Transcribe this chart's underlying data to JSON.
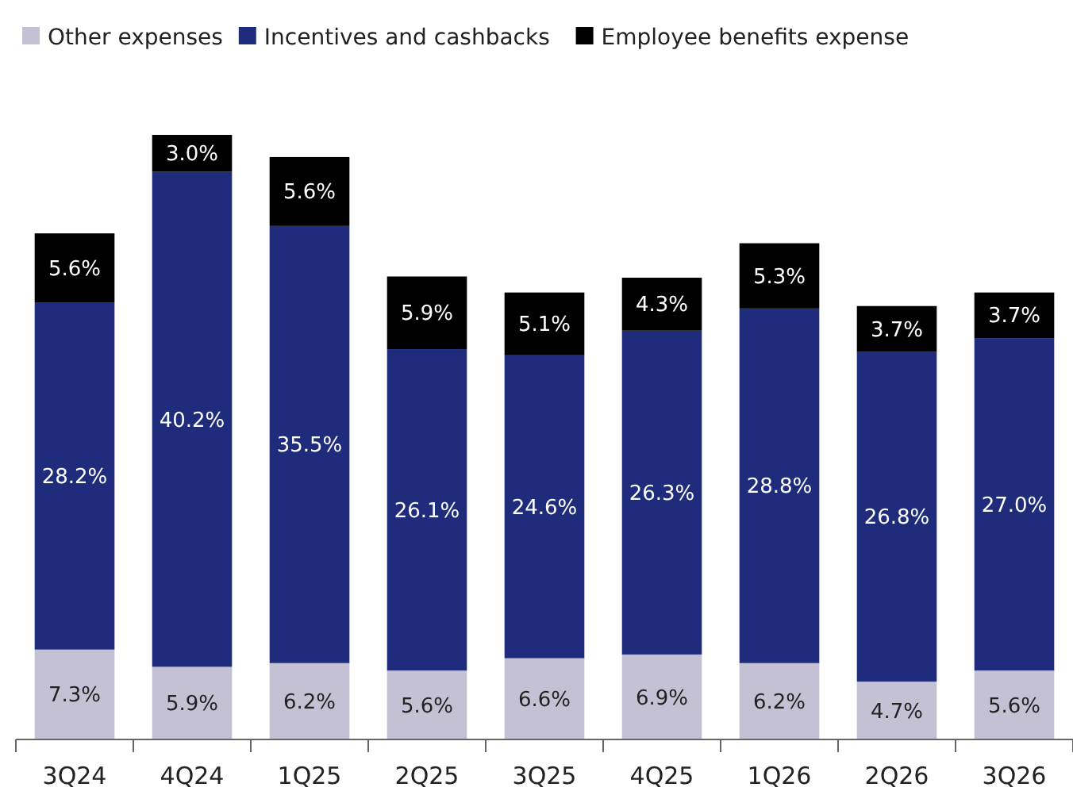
{
  "chart_data": {
    "type": "bar",
    "stacked": true,
    "legend": "top left",
    "categories": [
      "3Q24",
      "4Q24",
      "1Q25",
      "2Q25",
      "3Q25",
      "4Q25",
      "1Q26",
      "2Q26",
      "3Q26"
    ],
    "series": [
      {
        "name": "Other expenses",
        "color": "#c3c1d3",
        "values": [
          7.3,
          5.9,
          6.2,
          5.6,
          6.6,
          6.9,
          6.2,
          4.7,
          5.6
        ],
        "value_labels": [
          "7.3%",
          "5.9%",
          "6.2%",
          "5.6%",
          "6.6%",
          "6.9%",
          "6.2%",
          "4.7%",
          "5.6%"
        ]
      },
      {
        "name": "Incentives and cashbacks",
        "color": "#1f2c7c",
        "values": [
          28.2,
          40.2,
          35.5,
          26.1,
          24.6,
          26.3,
          28.8,
          26.8,
          27.0
        ],
        "value_labels": [
          "28.2%",
          "40.2%",
          "35.5%",
          "26.1%",
          "24.6%",
          "26.3%",
          "28.8%",
          "26.8%",
          "27.0%"
        ]
      },
      {
        "name": "Employee benefits expense",
        "color": "#000000",
        "values": [
          5.6,
          3.0,
          5.6,
          5.9,
          5.1,
          4.3,
          5.3,
          3.7,
          3.7
        ],
        "value_labels": [
          "5.6%",
          "3.0%",
          "5.6%",
          "5.9%",
          "5.1%",
          "4.3%",
          "5.3%",
          "3.7%",
          "3.7%"
        ]
      }
    ]
  }
}
